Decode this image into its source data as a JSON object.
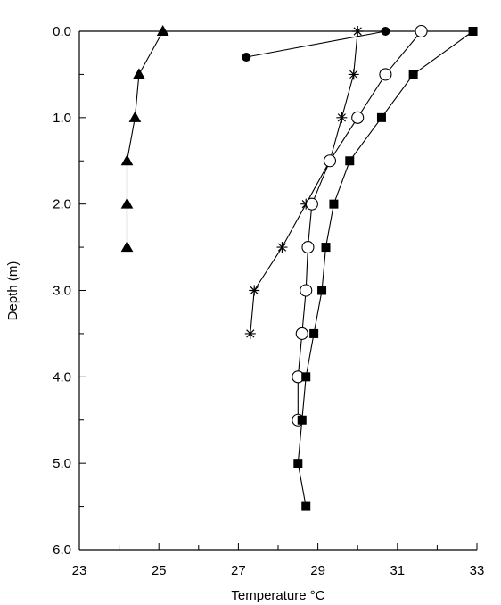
{
  "chart_data": {
    "type": "line",
    "title": "",
    "xlabel": "Temperature °C",
    "ylabel": "Depth (m)",
    "xlim": [
      23,
      33
    ],
    "ylim": [
      0,
      6
    ],
    "y_inverted": true,
    "x_axis_position": "top",
    "x_ticks": [
      23,
      24,
      25,
      26,
      27,
      28,
      29,
      30,
      31,
      32,
      33
    ],
    "x_tick_labels": [
      "23",
      "25",
      "27",
      "29",
      "31",
      "33"
    ],
    "y_ticks": [
      0,
      0.5,
      1,
      1.5,
      2,
      2.5,
      3,
      3.5,
      4,
      4.5,
      5,
      5.5,
      6
    ],
    "y_tick_labels": [
      "0.0",
      "1.0",
      "2.0",
      "3.0",
      "4.0",
      "5.0",
      "6.0"
    ],
    "grid": false,
    "legend": "none",
    "series": [
      {
        "marker": "filled-triangle",
        "points": [
          [
            25.1,
            0
          ],
          [
            24.5,
            0.5
          ],
          [
            24.4,
            1.0
          ],
          [
            24.2,
            1.5
          ],
          [
            24.2,
            2.0
          ],
          [
            24.2,
            2.5
          ]
        ]
      },
      {
        "marker": "filled-circle",
        "points": [
          [
            27.2,
            0.3
          ],
          [
            30.7,
            0
          ]
        ]
      },
      {
        "marker": "asterisk",
        "points": [
          [
            30.0,
            0
          ],
          [
            29.9,
            0.5
          ],
          [
            29.6,
            1.0
          ],
          [
            29.3,
            1.5
          ],
          [
            28.7,
            2.0
          ],
          [
            28.1,
            2.5
          ],
          [
            27.4,
            3.0
          ],
          [
            27.3,
            3.5
          ]
        ]
      },
      {
        "marker": "open-circle",
        "points": [
          [
            31.6,
            0
          ],
          [
            30.7,
            0.5
          ],
          [
            30.0,
            1.0
          ],
          [
            29.3,
            1.5
          ],
          [
            28.85,
            2.0
          ],
          [
            28.75,
            2.5
          ],
          [
            28.7,
            3.0
          ],
          [
            28.6,
            3.5
          ],
          [
            28.5,
            4.0
          ],
          [
            28.5,
            4.5
          ]
        ]
      },
      {
        "marker": "filled-square",
        "points": [
          [
            32.9,
            0
          ],
          [
            31.4,
            0.5
          ],
          [
            30.6,
            1.0
          ],
          [
            29.8,
            1.5
          ],
          [
            29.4,
            2.0
          ],
          [
            29.2,
            2.5
          ],
          [
            29.1,
            3.0
          ],
          [
            28.9,
            3.5
          ],
          [
            28.7,
            4.0
          ],
          [
            28.6,
            4.5
          ],
          [
            28.5,
            5.0
          ],
          [
            28.7,
            5.5
          ]
        ]
      }
    ]
  }
}
